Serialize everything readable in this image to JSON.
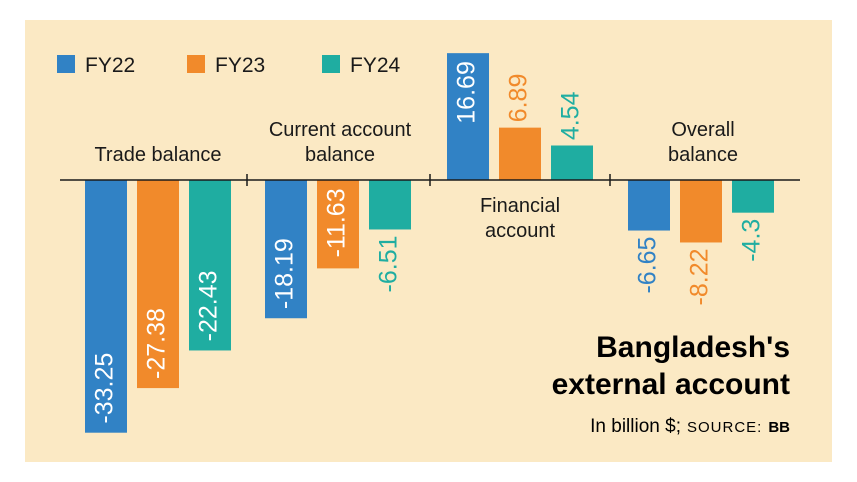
{
  "chart_data": {
    "type": "bar",
    "title_line1": "Bangladesh's",
    "title_line2": "external account",
    "subtitle": "In billion $;",
    "source_label": "SOURCE:",
    "source_value": "BB",
    "categories": [
      [
        "Trade balance"
      ],
      [
        "Current account",
        "balance"
      ],
      [
        "Financial",
        "account"
      ],
      [
        "Overall",
        "balance"
      ]
    ],
    "series": [
      {
        "name": "FY22",
        "color": "#3182c5",
        "values": [
          -33.25,
          -18.19,
          16.69,
          -6.65
        ],
        "labels": [
          "-33.25",
          "-18.19",
          "16.69",
          "-6.65"
        ]
      },
      {
        "name": "FY23",
        "color": "#f18a2b",
        "values": [
          -27.38,
          -11.63,
          6.89,
          -8.22
        ],
        "labels": [
          "-27.38",
          "-11.63",
          "6.89",
          "-8.22"
        ]
      },
      {
        "name": "FY24",
        "color": "#1fada1",
        "values": [
          -22.43,
          -6.51,
          4.54,
          -4.3
        ],
        "labels": [
          "-22.43",
          "-6.51",
          "4.54",
          "-4.3"
        ]
      }
    ],
    "background": "#fbe9c4",
    "legend_position": "top-left",
    "grid": false
  }
}
